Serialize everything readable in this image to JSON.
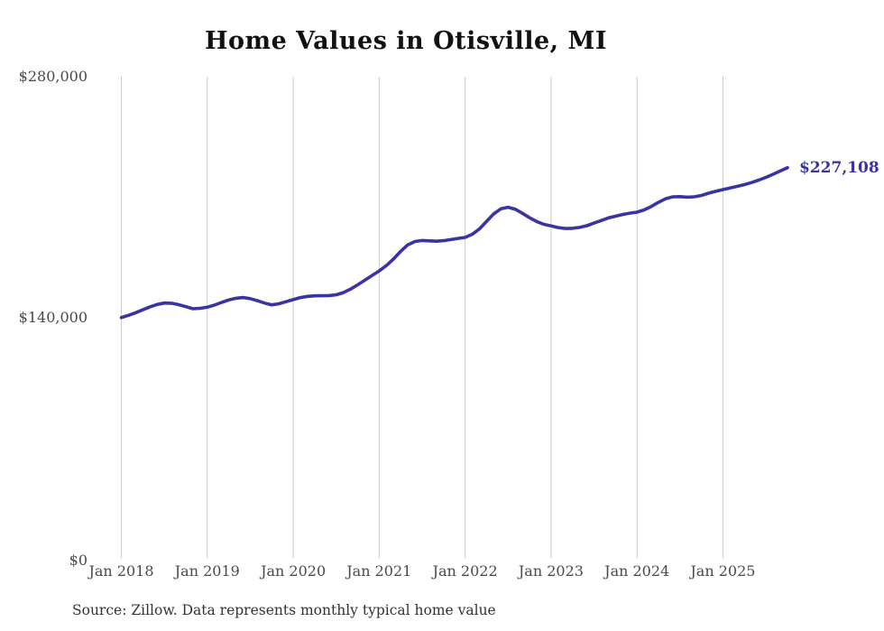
{
  "chart_data": {
    "type": "line",
    "title": "Home Values in Otisville, MI",
    "source_note": "Source: Zillow. Data represents monthly typical home value",
    "series_name": "Monthly typical home value",
    "start_month": "Jan 2018",
    "end_month": "Oct 2025",
    "end_label": "$227,108",
    "line_color": "#3a34a3",
    "grid_color": "#cccccc",
    "ylim": [
      0,
      280000
    ],
    "grid": "vertical-only",
    "y_ticks": [
      {
        "label": "$0",
        "value": 0
      },
      {
        "label": "$140,000",
        "value": 140000
      },
      {
        "label": "$280,000",
        "value": 280000
      }
    ],
    "x_tick_labels": [
      "Jan 2018",
      "Jan 2019",
      "Jan 2020",
      "Jan 2021",
      "Jan 2022",
      "Jan 2023",
      "Jan 2024",
      "Jan 2025"
    ],
    "values": [
      140000,
      141300,
      142800,
      144500,
      146200,
      147600,
      148400,
      148300,
      147500,
      146300,
      145100,
      145400,
      146000,
      147200,
      148800,
      150200,
      151200,
      151600,
      151000,
      149800,
      148400,
      147400,
      148000,
      149200,
      150400,
      151600,
      152300,
      152600,
      152700,
      152800,
      153200,
      154500,
      156500,
      159000,
      161700,
      164400,
      167100,
      170200,
      174000,
      178500,
      182300,
      184200,
      184800,
      184600,
      184400,
      184700,
      185300,
      186000,
      186600,
      188400,
      191500,
      196000,
      200300,
      203200,
      204100,
      203000,
      200600,
      198000,
      195800,
      194200,
      193300,
      192300,
      191800,
      191900,
      192400,
      193400,
      194900,
      196400,
      197900,
      198900,
      199900,
      200700,
      201300,
      202600,
      204600,
      207000,
      209100,
      210200,
      210300,
      210000,
      210200,
      211000,
      212300,
      213400,
      214400,
      215300,
      216300,
      217300,
      218500,
      219900,
      221500,
      223300,
      225200,
      227108
    ]
  }
}
